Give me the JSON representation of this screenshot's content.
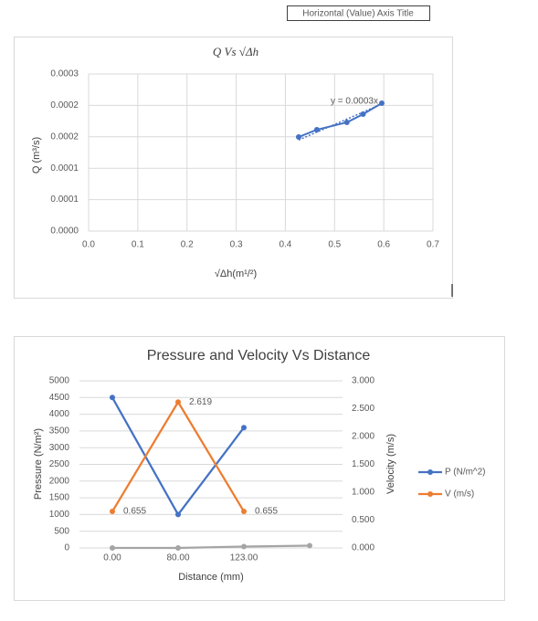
{
  "chart_data": [
    {
      "type": "scatter",
      "title": "Q Vs √Δh",
      "x_label": "√Δh(m¹/²)",
      "y_label": "Q (m³/s)",
      "annotations": [
        "y = 0.0003x",
        "Horizontal (Value) Axis Title"
      ],
      "x": [
        0.427,
        0.464,
        0.525,
        0.558,
        0.596
      ],
      "values": [
        0.0001497,
        0.0001613,
        0.000173,
        0.000186,
        0.0002035
      ],
      "color": "#4472c4",
      "trendline": true,
      "grid": true,
      "xlim": [
        0,
        0.7
      ],
      "xticks": [
        {
          "value": 0,
          "label": "0.0"
        },
        {
          "value": 0.1,
          "label": "0.1"
        },
        {
          "value": 0.2,
          "label": "0.2"
        },
        {
          "value": 0.3,
          "label": "0.3"
        },
        {
          "value": 0.4,
          "label": "0.4"
        },
        {
          "value": 0.5,
          "label": "0.5"
        },
        {
          "value": 0.6,
          "label": "0.6"
        },
        {
          "value": 0.7,
          "label": "0.7"
        }
      ],
      "ylim": [
        0,
        0.00025
      ],
      "yticks": [
        {
          "value": 0,
          "label": "0.0000"
        },
        {
          "value": 5e-05,
          "label": "0.0001"
        },
        {
          "value": 0.0001,
          "label": "0.0001"
        },
        {
          "value": 0.00015,
          "label": "0.0002"
        },
        {
          "value": 0.0002,
          "label": "0.0002"
        },
        {
          "value": 0.00025,
          "label": "0.0003"
        }
      ]
    },
    {
      "type": "line",
      "title": "Pressure and Velocity Vs Distance",
      "x_label": "Distance (mm)",
      "y_label": "Pressure (N/m²)",
      "y2_label": "Velocity (m/s)",
      "categories": [
        "0.00",
        "80.00",
        "123.00",
        null
      ],
      "series": [
        {
          "name": "P (N/m^2)",
          "color": "#4472c4",
          "values": [
            4500,
            1000,
            3600,
            null
          ]
        },
        {
          "name": "V (m/s)",
          "color": "#ed7d31",
          "axis": "y2",
          "values": [
            0.655,
            2.619,
            0.655,
            null
          ],
          "data_labels": true
        },
        {
          "color": "#a5a5a5",
          "values": [
            0,
            0,
            40,
            70
          ]
        }
      ],
      "grid": true,
      "legend": "right",
      "ylim": [
        0,
        5000
      ],
      "yticks": [
        0,
        500,
        1000,
        1500,
        2000,
        2500,
        3000,
        3500,
        4000,
        4500,
        5000
      ],
      "y2lim": [
        0,
        3
      ],
      "y2ticks": [
        {
          "value": 0,
          "label": "0.000"
        },
        {
          "value": 0.5,
          "label": "0.500"
        },
        {
          "value": 1,
          "label": "1.000"
        },
        {
          "value": 1.5,
          "label": "1.500"
        },
        {
          "value": 2,
          "label": "2.000"
        },
        {
          "value": 2.5,
          "label": "2.500"
        },
        {
          "value": 3,
          "label": "3.000"
        }
      ]
    }
  ]
}
